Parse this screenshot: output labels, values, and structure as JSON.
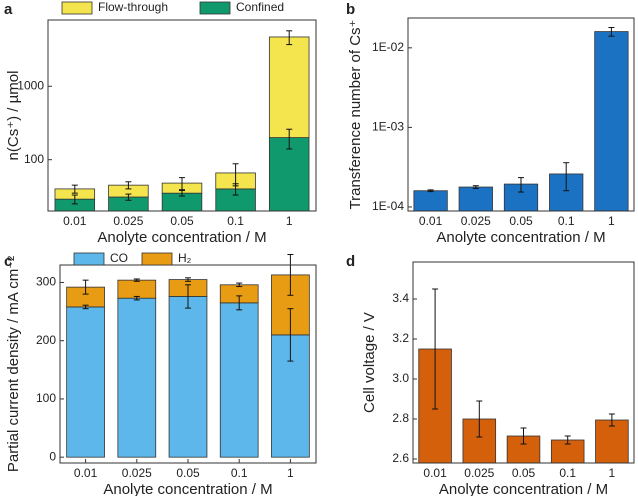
{
  "chart_data": [
    {
      "type": "bar",
      "panel_label": "a",
      "stacked": true,
      "log_scale": true,
      "legend": "top",
      "xlabel": "Anolyte concentration / M",
      "ylabel": "n(Cs⁺) / µmol",
      "categories": [
        "0.01",
        "0.025",
        "0.05",
        "0.1",
        "1"
      ],
      "series": [
        {
          "name": "Confined",
          "color": "#10996d",
          "values": [
            29,
            31,
            35,
            40,
            200
          ],
          "errors": [
            4,
            3,
            3,
            7,
            60
          ]
        },
        {
          "name": "Flow-through",
          "color": "#f4e44e",
          "values": [
            11,
            14,
            13,
            26,
            4500
          ],
          "errors": [
            5,
            5,
            9,
            22,
            1000
          ]
        }
      ],
      "ylim": [
        20,
        8000
      ],
      "yticks": [
        100,
        1000
      ]
    },
    {
      "type": "bar",
      "panel_label": "b",
      "stacked": false,
      "log_scale": true,
      "xlabel": "Anolyte concentration / M",
      "ylabel": "Transference number of Cs⁺",
      "categories": [
        "0.01",
        "0.025",
        "0.05",
        "0.1",
        "1"
      ],
      "series": [
        {
          "name": "Transference number",
          "color": "#1c72c2",
          "values": [
            0.00016,
            0.000178,
            0.000194,
            0.00026,
            0.016
          ],
          "errors": [
            4e-06,
            7e-06,
            4e-05,
            0.0001,
            0.002
          ]
        }
      ],
      "ylim": [
        8.9e-05,
        0.0237
      ],
      "yticks": [
        {
          "value": 0.0001,
          "label": "1E-04"
        },
        {
          "value": 0.001,
          "label": "1E-03"
        },
        {
          "value": 0.01,
          "label": "1E-02"
        }
      ]
    },
    {
      "type": "bar",
      "panel_label": "c",
      "stacked": true,
      "log_scale": false,
      "legend": "top",
      "xlabel": "Anolyte concentration / M",
      "ylabel": "Partial current density / mA cm⁻²",
      "categories": [
        "0.01",
        "0.025",
        "0.05",
        "0.1",
        "1"
      ],
      "series": [
        {
          "name": "CO",
          "color": "#5db7ea",
          "values": [
            258,
            273,
            276,
            265,
            210
          ],
          "errors": [
            3,
            3,
            20,
            12,
            45
          ]
        },
        {
          "name": "H₂",
          "color": "#e89c14",
          "values": [
            34,
            31,
            29,
            31,
            103
          ],
          "errors": [
            12,
            2,
            3,
            3,
            35
          ]
        }
      ],
      "ylim": [
        -10,
        330
      ],
      "yticks": [
        0,
        100,
        200,
        300
      ]
    },
    {
      "type": "bar",
      "panel_label": "d",
      "stacked": false,
      "log_scale": false,
      "xlabel": "Anolyte concentration / M",
      "ylabel": "Cell voltage / V",
      "categories": [
        "0.01",
        "0.025",
        "0.05",
        "0.1",
        "1"
      ],
      "series": [
        {
          "name": "Cell voltage",
          "color": "#d4600c",
          "values": [
            3.15,
            2.8,
            2.715,
            2.695,
            2.795
          ],
          "errors": [
            0.3,
            0.09,
            0.04,
            0.02,
            0.03
          ]
        }
      ],
      "ylim": [
        2.58,
        3.585
      ],
      "yticks": [
        2.6,
        2.8,
        {
          "value": 3.0,
          "label": "3.0"
        },
        3.2,
        3.4
      ]
    }
  ]
}
